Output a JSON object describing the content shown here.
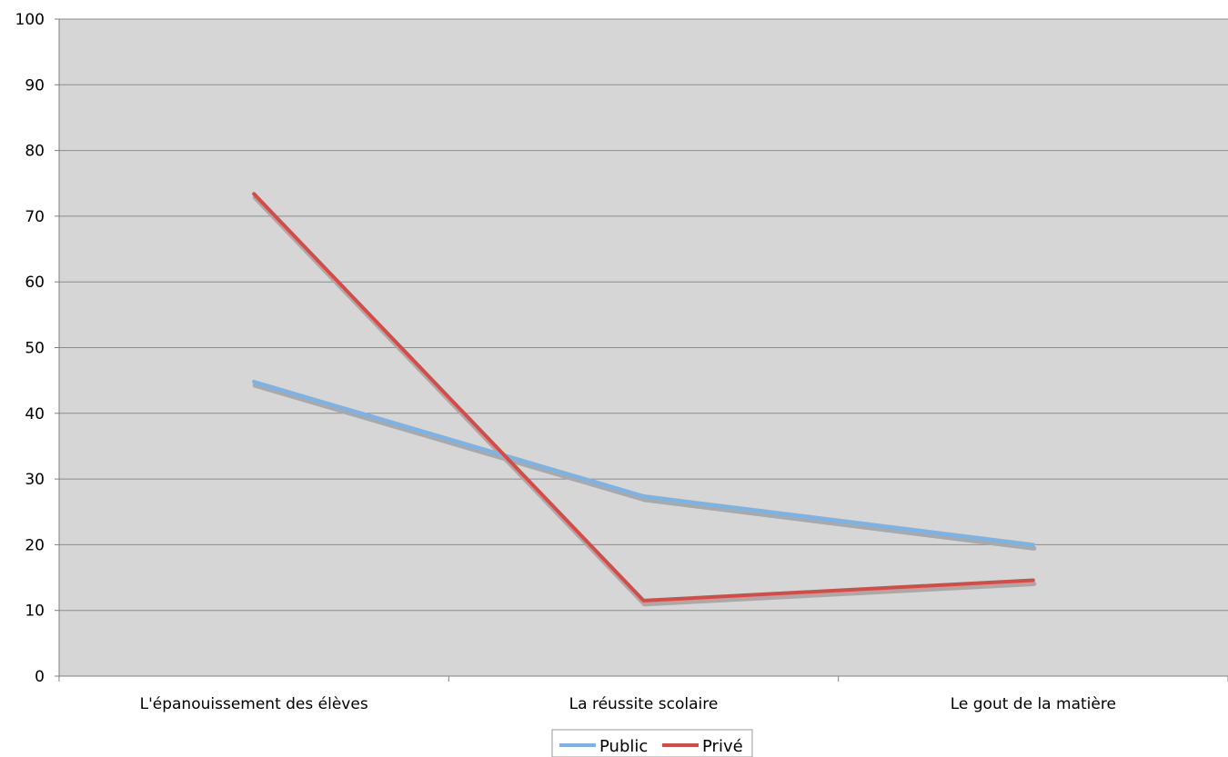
{
  "chart_data": {
    "type": "line",
    "title": "",
    "xlabel": "",
    "ylabel": "",
    "ylim": [
      0,
      100
    ],
    "yticks": [
      0,
      10,
      20,
      30,
      40,
      50,
      60,
      70,
      80,
      90,
      100
    ],
    "categories": [
      "L'épanouissement des élèves",
      "La réussite scolaire",
      "Le gout de la matière"
    ],
    "series": [
      {
        "name": "Public",
        "values": [
          44.8,
          27.4,
          20.0
        ],
        "color": "#78b4ea"
      },
      {
        "name": "Privé",
        "values": [
          73.4,
          11.5,
          14.6
        ],
        "color": "#d94a44"
      }
    ],
    "grid": true,
    "plot_background": "#d6d6d6",
    "gridline_color": "#8c8c8c",
    "legend_position": "bottom-center"
  }
}
